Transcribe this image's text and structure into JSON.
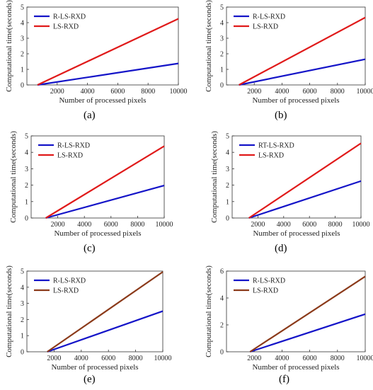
{
  "chart_data": [
    {
      "type": "line",
      "caption": "(a)",
      "xlabel": "Number of processed pixels",
      "ylabel": "Computational time(seconds)",
      "xlim": [
        0,
        10000
      ],
      "ylim": [
        0,
        5
      ],
      "xticks": [
        2000,
        4000,
        6000,
        8000,
        10000
      ],
      "yticks": [
        0,
        1,
        2,
        3,
        4,
        5
      ],
      "legend_position": "top-left",
      "series": [
        {
          "name": "R-LS-RXD",
          "color": "#1414c8",
          "x": [
            700,
            10000
          ],
          "y": [
            0,
            1.38
          ]
        },
        {
          "name": "LS-RXD",
          "color": "#e01a1a",
          "x": [
            700,
            10000
          ],
          "y": [
            0,
            4.25
          ]
        }
      ]
    },
    {
      "type": "line",
      "caption": "(b)",
      "xlabel": "Number of processed pixels",
      "ylabel": "Computational time(seconds)",
      "xlim": [
        0,
        10000
      ],
      "ylim": [
        0,
        5
      ],
      "xticks": [
        2000,
        4000,
        6000,
        8000,
        10000
      ],
      "yticks": [
        0,
        1,
        2,
        3,
        4,
        5
      ],
      "legend_position": "top-left",
      "series": [
        {
          "name": "R-LS-RXD",
          "color": "#1414c8",
          "x": [
            900,
            10000
          ],
          "y": [
            0,
            1.65
          ]
        },
        {
          "name": "LS-RXD",
          "color": "#e01a1a",
          "x": [
            900,
            10000
          ],
          "y": [
            0,
            4.33
          ]
        }
      ]
    },
    {
      "type": "line",
      "caption": "(c)",
      "xlabel": "Number of processed pixels",
      "ylabel": "Computational time(seconds)",
      "xlim": [
        0,
        10000
      ],
      "ylim": [
        0,
        5
      ],
      "xticks": [
        2000,
        4000,
        6000,
        8000,
        10000
      ],
      "yticks": [
        0,
        1,
        2,
        3,
        4,
        5
      ],
      "legend_position": "top-left",
      "series": [
        {
          "name": "R-LS-RXD",
          "color": "#1414c8",
          "x": [
            1100,
            10000
          ],
          "y": [
            0,
            1.98
          ]
        },
        {
          "name": "LS-RXD",
          "color": "#e01a1a",
          "x": [
            1100,
            10000
          ],
          "y": [
            0,
            4.38
          ]
        }
      ]
    },
    {
      "type": "line",
      "caption": "(d)",
      "xlabel": "Number of processed pixels",
      "ylabel": "Computational time(seconds)",
      "xlim": [
        0,
        10000
      ],
      "ylim": [
        0,
        5
      ],
      "xticks": [
        2000,
        4000,
        6000,
        8000,
        10000
      ],
      "yticks": [
        0,
        1,
        2,
        3,
        4,
        5
      ],
      "legend_position": "top-left",
      "series": [
        {
          "name": "RT-LS-RXD",
          "color": "#1414c8",
          "x": [
            1300,
            10000
          ],
          "y": [
            0,
            2.25
          ]
        },
        {
          "name": "LS-RXD",
          "color": "#e01a1a",
          "x": [
            1300,
            10000
          ],
          "y": [
            0,
            4.55
          ]
        }
      ]
    },
    {
      "type": "line",
      "caption": "(e)",
      "xlabel": "Number of processed pixels",
      "ylabel": "Computational time(seconds)",
      "xlim": [
        0,
        10000
      ],
      "ylim": [
        0,
        5
      ],
      "xticks": [
        2000,
        4000,
        6000,
        8000,
        10000
      ],
      "yticks": [
        0,
        1,
        2,
        3,
        4,
        5
      ],
      "legend_position": "top-left",
      "series": [
        {
          "name": "R-LS-RXD",
          "color": "#1414c8",
          "x": [
            1500,
            10000
          ],
          "y": [
            0,
            2.52
          ]
        },
        {
          "name": "LS-RXD",
          "color": "#8b3a1a",
          "x": [
            1500,
            10000
          ],
          "y": [
            0,
            4.95
          ]
        }
      ]
    },
    {
      "type": "line",
      "caption": "(f)",
      "xlabel": "Number of processed pixels",
      "ylabel": "Computational time(seconds)",
      "xlim": [
        0,
        10000
      ],
      "ylim": [
        0,
        6
      ],
      "xticks": [
        2000,
        4000,
        6000,
        8000,
        10000
      ],
      "yticks": [
        0,
        2,
        4,
        6
      ],
      "legend_position": "top-left",
      "series": [
        {
          "name": "R-LS-RXD",
          "color": "#1414c8",
          "x": [
            1700,
            10000
          ],
          "y": [
            0,
            2.8
          ]
        },
        {
          "name": "LS-RXD",
          "color": "#8b3a1a",
          "x": [
            1700,
            10000
          ],
          "y": [
            0,
            5.6
          ]
        }
      ]
    }
  ]
}
